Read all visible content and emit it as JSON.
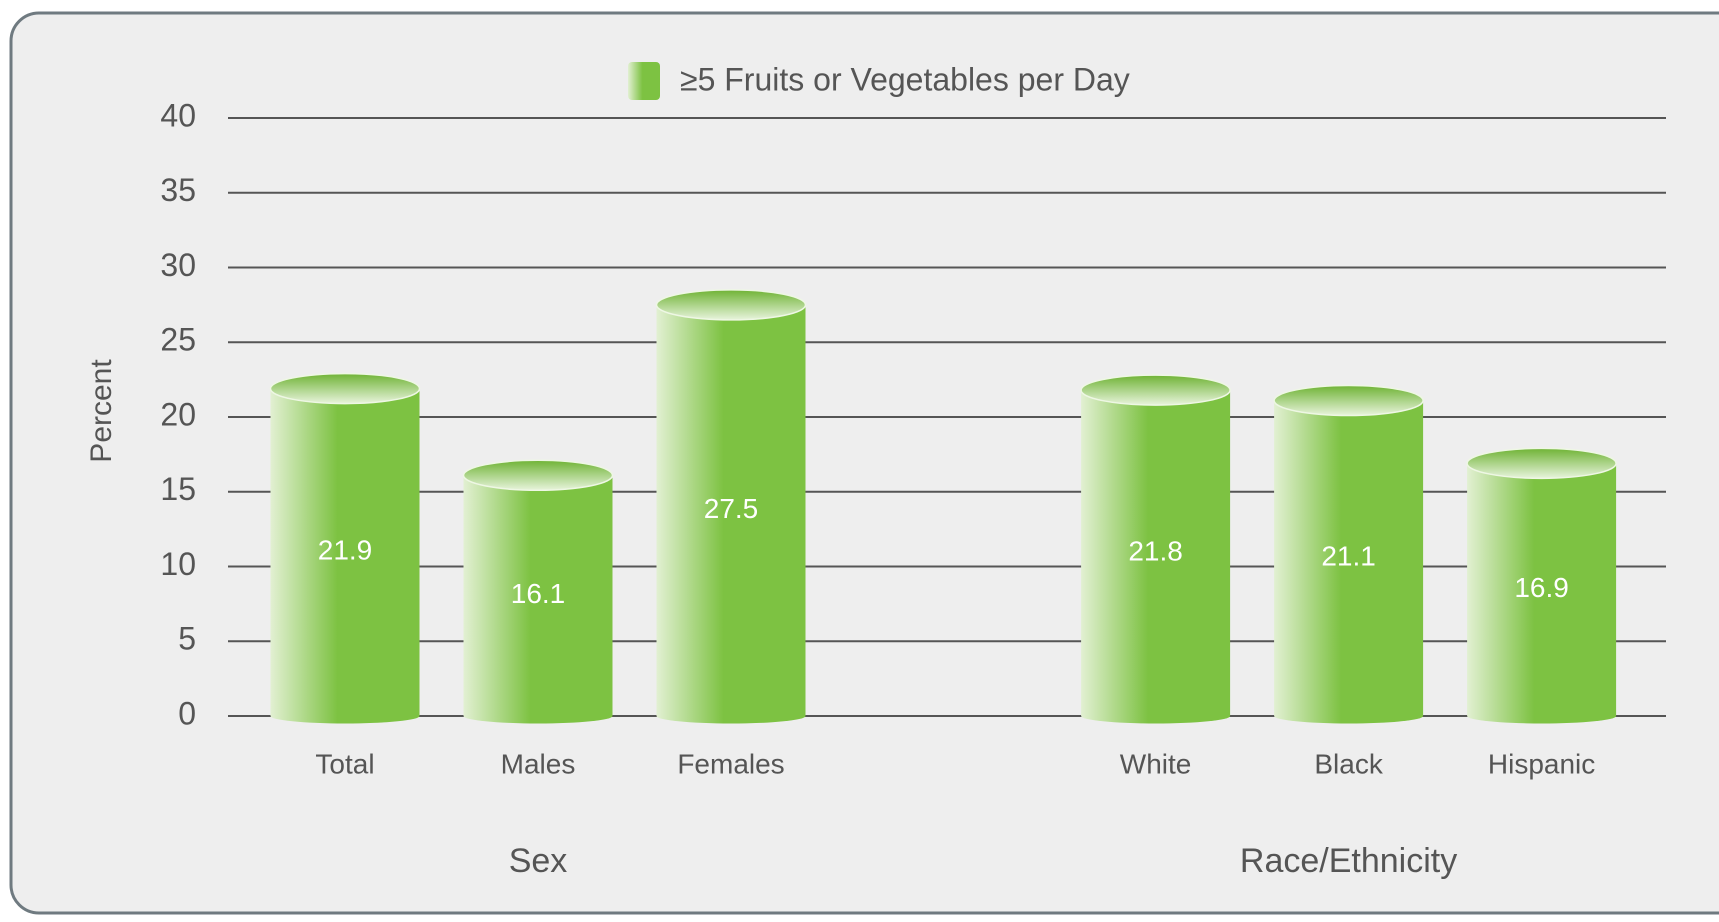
{
  "chart_data": {
    "type": "bar",
    "series": [
      {
        "name": "≥5 Fruits or Vegetables per Day",
        "color": "#7dc242"
      }
    ],
    "ylabel": "Percent",
    "groups": [
      {
        "name": "Sex",
        "categories": [
          "Total",
          "Males",
          "Females"
        ],
        "values": [
          21.9,
          16.1,
          27.5
        ]
      },
      {
        "name": "Race/Ethnicity",
        "categories": [
          "White",
          "Black",
          "Hispanic"
        ],
        "values": [
          21.8,
          21.1,
          16.9
        ]
      }
    ],
    "ylim": [
      0,
      40
    ],
    "yticks": [
      0,
      5,
      10,
      15,
      20,
      25,
      30,
      35,
      40
    ],
    "grid": true
  }
}
